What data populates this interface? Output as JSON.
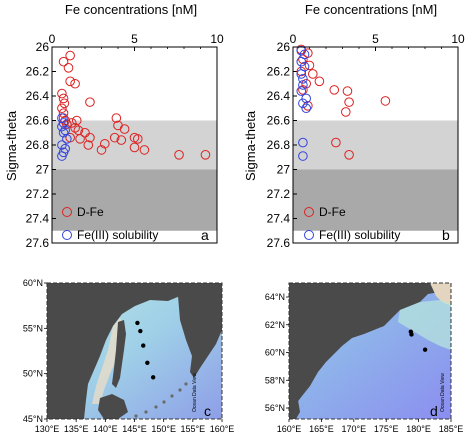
{
  "chart_data": [
    {
      "type": "scatter",
      "panel": "a",
      "xlabel": "Fe concentrations [nM]",
      "ylabel": "Sigma-theta",
      "xlim": [
        0,
        10
      ],
      "ylim": [
        27.6,
        26.0
      ],
      "x_axis_position": "top",
      "x_ticks": [
        "0",
        "5",
        "10"
      ],
      "y_ticks": [
        "26",
        "26.2",
        "26.4",
        "26.6",
        "26.8",
        "27",
        "27.2",
        "27.4",
        "27.6"
      ],
      "shaded_bands": [
        {
          "from": 26.6,
          "to": 27.0,
          "color": "#d3d3d3"
        },
        {
          "from": 27.0,
          "to": 27.5,
          "color": "#a9a9a9"
        }
      ],
      "legend_placement": "bottom-left",
      "series": [
        {
          "name": "D-Fe",
          "color": "#dd2222",
          "points": [
            [
              1.1,
              26.07
            ],
            [
              0.7,
              26.12
            ],
            [
              1.0,
              26.17
            ],
            [
              1.1,
              26.28
            ],
            [
              1.4,
              26.3
            ],
            [
              0.6,
              26.38
            ],
            [
              0.7,
              26.42
            ],
            [
              0.75,
              26.46
            ],
            [
              2.3,
              26.45
            ],
            [
              0.6,
              26.5
            ],
            [
              0.7,
              26.54
            ],
            [
              0.7,
              26.58
            ],
            [
              0.8,
              26.6
            ],
            [
              1.5,
              26.6
            ],
            [
              3.9,
              26.58
            ],
            [
              0.9,
              26.63
            ],
            [
              1.2,
              26.62
            ],
            [
              1.4,
              26.66
            ],
            [
              1.6,
              26.68
            ],
            [
              2.0,
              26.7
            ],
            [
              4.0,
              26.64
            ],
            [
              4.4,
              26.67
            ],
            [
              1.1,
              26.74
            ],
            [
              1.7,
              26.75
            ],
            [
              2.3,
              26.74
            ],
            [
              3.8,
              26.74
            ],
            [
              4.2,
              26.76
            ],
            [
              5.0,
              26.74
            ],
            [
              5.2,
              26.75
            ],
            [
              2.2,
              26.8
            ],
            [
              3.2,
              26.79
            ],
            [
              3.0,
              26.84
            ],
            [
              5.0,
              26.82
            ],
            [
              5.6,
              26.84
            ],
            [
              7.7,
              26.88
            ],
            [
              9.3,
              26.88
            ]
          ]
        },
        {
          "name": "Fe(III) solubility",
          "color": "#3344dd",
          "points": [
            [
              0.6,
              26.58
            ],
            [
              0.7,
              26.62
            ],
            [
              0.6,
              26.65
            ],
            [
              0.8,
              26.68
            ],
            [
              0.7,
              26.7
            ],
            [
              0.9,
              26.75
            ],
            [
              0.6,
              26.8
            ],
            [
              0.8,
              26.83
            ],
            [
              0.7,
              26.86
            ],
            [
              0.6,
              26.89
            ]
          ]
        }
      ]
    },
    {
      "type": "scatter",
      "panel": "b",
      "xlabel": "Fe concentrations [nM]",
      "ylabel": "Sigma-theta",
      "xlim": [
        0,
        10
      ],
      "ylim": [
        27.6,
        26.0
      ],
      "x_axis_position": "top",
      "x_ticks": [
        "0",
        "5",
        "10"
      ],
      "y_ticks": [
        "26",
        "26.2",
        "26.4",
        "26.6",
        "26.8",
        "27",
        "27.2",
        "27.4",
        "27.6"
      ],
      "shaded_bands": [
        {
          "from": 26.6,
          "to": 27.0,
          "color": "#d3d3d3"
        },
        {
          "from": 27.0,
          "to": 27.5,
          "color": "#a9a9a9"
        }
      ],
      "legend_placement": "bottom-left",
      "series": [
        {
          "name": "D-Fe",
          "color": "#dd2222",
          "points": [
            [
              0.5,
              26.02
            ],
            [
              0.9,
              26.05
            ],
            [
              0.6,
              26.1
            ],
            [
              1.0,
              26.15
            ],
            [
              0.5,
              26.2
            ],
            [
              1.2,
              26.22
            ],
            [
              1.6,
              26.28
            ],
            [
              0.8,
              26.3
            ],
            [
              0.6,
              26.35
            ],
            [
              2.5,
              26.35
            ],
            [
              3.3,
              26.36
            ],
            [
              3.4,
              26.45
            ],
            [
              5.6,
              26.44
            ],
            [
              0.9,
              26.48
            ],
            [
              3.2,
              26.53
            ],
            [
              2.6,
              26.78
            ],
            [
              3.4,
              26.88
            ]
          ]
        },
        {
          "name": "Fe(III) solubility",
          "color": "#3344dd",
          "points": [
            [
              0.5,
              26.03
            ],
            [
              0.7,
              26.06
            ],
            [
              0.5,
              26.12
            ],
            [
              0.7,
              26.16
            ],
            [
              0.5,
              26.22
            ],
            [
              0.6,
              26.26
            ],
            [
              0.6,
              26.31
            ],
            [
              0.5,
              26.36
            ],
            [
              0.8,
              26.42
            ],
            [
              0.6,
              26.46
            ],
            [
              0.8,
              26.5
            ],
            [
              0.6,
              26.78
            ],
            [
              0.6,
              26.89
            ]
          ]
        }
      ]
    }
  ],
  "maps": [
    {
      "panel": "c",
      "lat_labels": [
        "60°N",
        "55°N",
        "50°N",
        "45°N"
      ],
      "lon_labels": [
        "130°E",
        "135°E",
        "140°E",
        "145°E",
        "150°E",
        "155°E",
        "160°E"
      ],
      "watermark": "Ocean Data View",
      "stations": [
        [
          145.5,
          55.6
        ],
        [
          146.0,
          54.7
        ],
        [
          146.5,
          53.1
        ],
        [
          147.2,
          51.2
        ],
        [
          148.2,
          49.6
        ]
      ]
    },
    {
      "panel": "d",
      "lat_labels": [
        "64°N",
        "62°N",
        "60°N",
        "58°N",
        "56°N"
      ],
      "lon_labels": [
        "160°E",
        "165°E",
        "170°E",
        "175°E",
        "180°E",
        "185°E"
      ],
      "watermark": "Ocean Data View",
      "stations": [
        [
          178.8,
          61.5
        ],
        [
          178.9,
          61.3
        ],
        [
          181.0,
          60.2
        ]
      ]
    }
  ]
}
